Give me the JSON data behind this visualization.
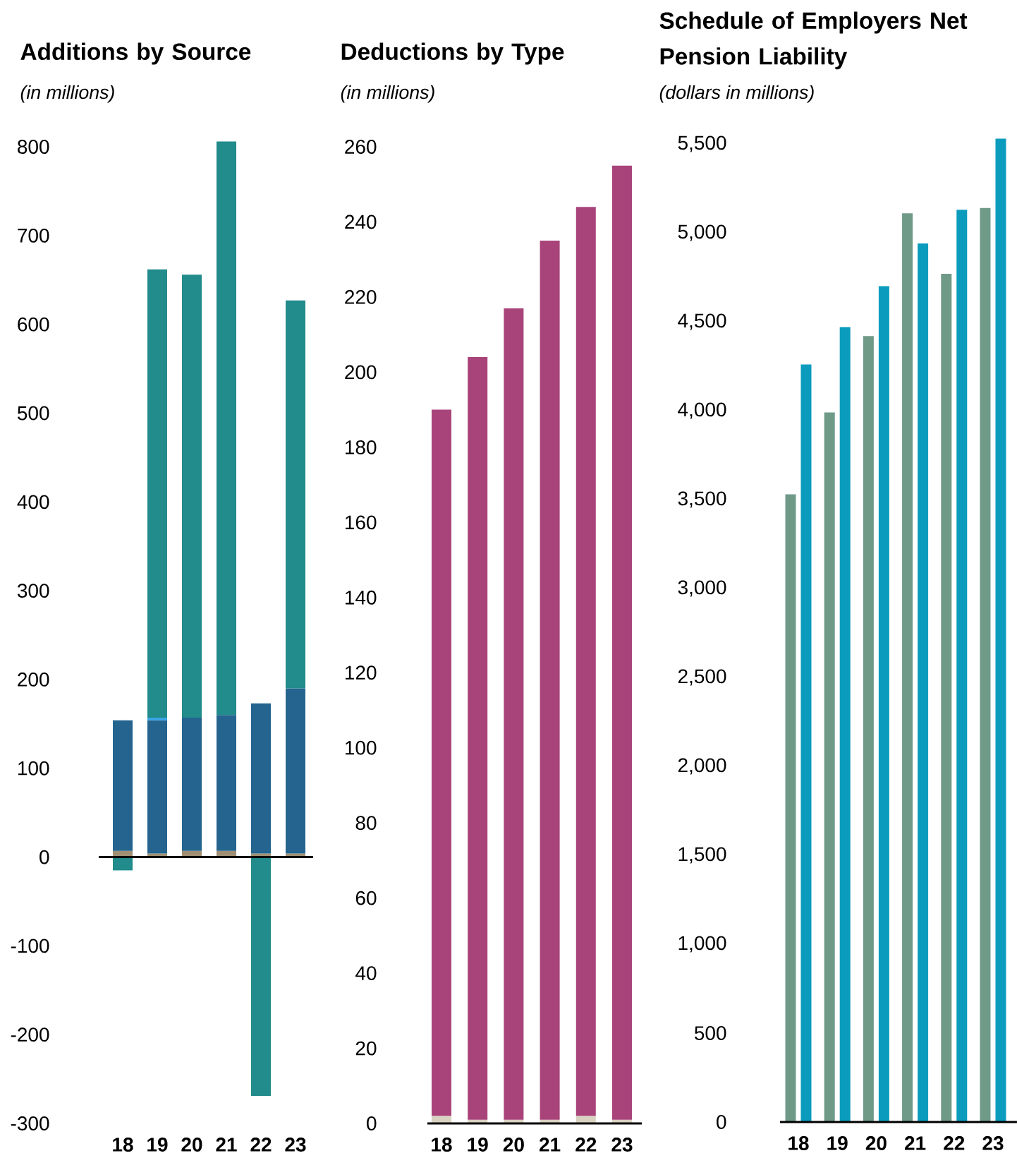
{
  "chart_data": [
    {
      "type": "bar",
      "stacked": true,
      "title": "Additions by Source",
      "subtitle": "*(in millions)*",
      "categories": [
        "18",
        "19",
        "20",
        "21",
        "22",
        "23"
      ],
      "series": [
        {
          "color": "#a08f74",
          "values": [
            7,
            4,
            7,
            7,
            4,
            4
          ]
        },
        {
          "color": "#24648f",
          "values": [
            147,
            150,
            150,
            153,
            169,
            186
          ]
        },
        {
          "color": "#39a4e6",
          "values": [
            null,
            3,
            null,
            null,
            null,
            null
          ]
        },
        {
          "color": "#228b8b",
          "values": [
            -15,
            505,
            499,
            646,
            -269,
            437
          ]
        }
      ],
      "ylim": [
        -300,
        810
      ],
      "yticks": [
        -300,
        -200,
        -100,
        0,
        100,
        200,
        300,
        400,
        500,
        600,
        700,
        800
      ]
    },
    {
      "type": "bar",
      "stacked": true,
      "title": "Deductions by Type",
      "subtitle": "*(in millions)*",
      "categories": [
        "18",
        "19",
        "20",
        "21",
        "22",
        "23"
      ],
      "series": [
        {
          "color": "#d9d2c0",
          "values": [
            2,
            1,
            1,
            1,
            2,
            1
          ]
        },
        {
          "color": "#a8447a",
          "values": [
            188,
            203,
            216,
            234,
            242,
            254
          ]
        }
      ],
      "ylim": [
        0,
        260
      ],
      "yticks": [
        0,
        20,
        40,
        60,
        80,
        100,
        120,
        140,
        160,
        180,
        200,
        220,
        240,
        260
      ]
    },
    {
      "type": "bar",
      "title": "Schedule of Employers Net Pension Liability",
      "subtitle": "*(dollars in millions)*",
      "categories": [
        "18",
        "19",
        "20",
        "21",
        "22",
        "23"
      ],
      "series": [
        {
          "color": "#6f9a88",
          "values": [
            3530,
            3990,
            4420,
            5110,
            4770,
            5140
          ]
        },
        {
          "color": "#0b9cbd",
          "values": [
            4260,
            4470,
            4700,
            4940,
            5130,
            5530
          ]
        }
      ],
      "ylim": [
        0,
        5560
      ],
      "yticks": [
        0,
        500,
        {
          "value": 1000,
          "label": "1,000"
        },
        {
          "value": 1500,
          "label": "1,500"
        },
        {
          "value": 2000,
          "label": "2,000"
        },
        {
          "value": 2500,
          "label": "2,500"
        },
        {
          "value": 3000,
          "label": "3,000"
        },
        {
          "value": 3500,
          "label": "3,500"
        },
        {
          "value": 4000,
          "label": "4,000"
        },
        {
          "value": 4500,
          "label": "4,500"
        },
        {
          "value": 5000,
          "label": "5,000"
        },
        {
          "value": 5500,
          "label": "5,500"
        }
      ]
    }
  ]
}
